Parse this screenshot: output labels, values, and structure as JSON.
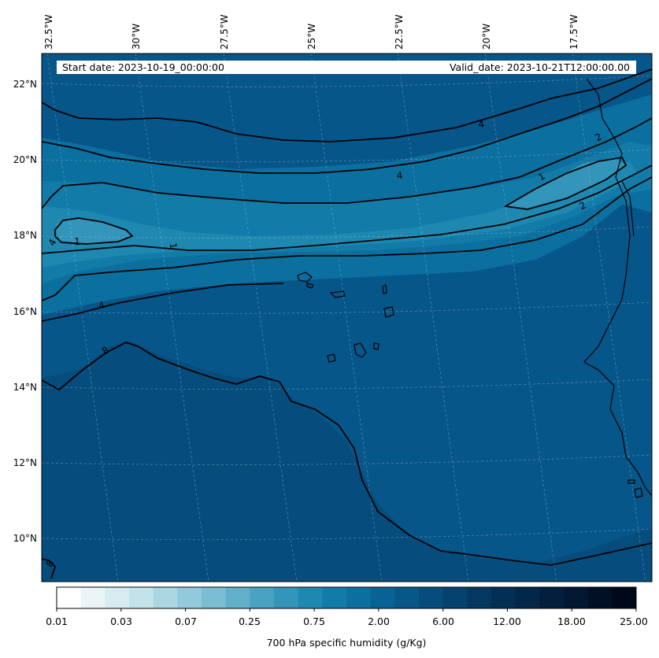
{
  "header": {
    "start_date": "Start date: 2023-10-19_00:00:00",
    "valid_date": "Valid_date: 2023-10-21T12:00:00.00"
  },
  "longitude_labels": [
    "32.5°W",
    "30°W",
    "27.5°W",
    "25°W",
    "22.5°W",
    "20°W",
    "17.5°W"
  ],
  "latitude_labels": [
    "22°N",
    "20°N",
    "18°N",
    "16°N",
    "14°N",
    "12°N",
    "10°N"
  ],
  "contour_labels": [
    "4",
    "4",
    "4",
    "2",
    "2",
    "1",
    "1",
    "1",
    "4",
    "8",
    "8"
  ],
  "colorbar": {
    "title": "700 hPa specific humidity (g/Kg)",
    "tick_labels": [
      "0.01",
      "0.03",
      "0.07",
      "0.25",
      "0.75",
      "2.00",
      "6.00",
      "12.00",
      "18.00",
      "25.00"
    ],
    "colors": [
      "#ffffff",
      "#eaf5f8",
      "#d7ecf1",
      "#c3e3ea",
      "#abd7e3",
      "#93cadb",
      "#7bbdd2",
      "#62afca",
      "#49a2c1",
      "#3395ba",
      "#1f88b1",
      "#127ba8",
      "#0b6f9f",
      "#086394",
      "#075889",
      "#064d7d",
      "#05426f",
      "#043861",
      "#032f55",
      "#032749",
      "#021f3d",
      "#021731",
      "#011025",
      "#00091a"
    ]
  },
  "field_colors": {
    "background": "#07568a",
    "south": "#064d7d",
    "moist_band": "#0b6f9f",
    "inner_band": "#127ba8",
    "core": "#1f88b1",
    "peak": "#3395ba"
  }
}
